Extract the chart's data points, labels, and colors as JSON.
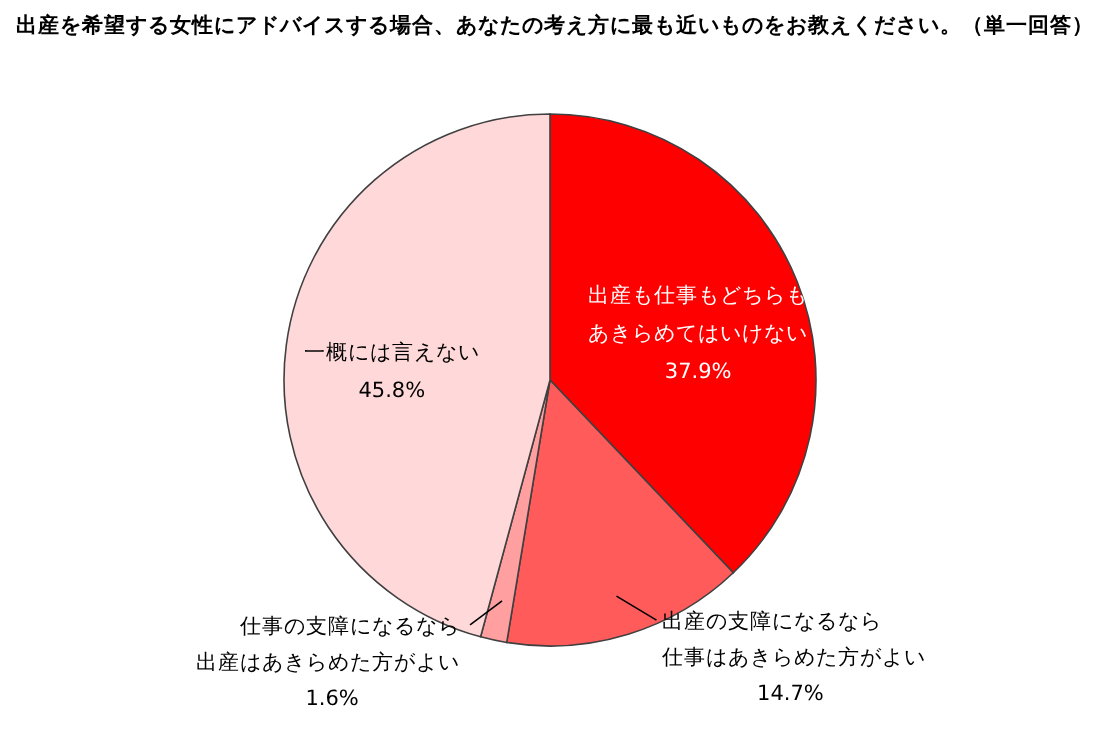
{
  "chart_data": {
    "type": "pie",
    "title": "出産を希望する女性にアドバイスする場合、あなたの考え方に最も近いものをお教えください。（単一回答）",
    "categories": [
      "出産も仕事もどちらもあきらめてはいけない",
      "出産の支障になるなら仕事はあきらめた方がよい",
      "仕事の支障になるなら出産はあきらめた方がよい",
      "一概には言えない"
    ],
    "values": [
      37.9,
      14.7,
      1.6,
      45.8
    ],
    "value_labels": [
      "37.9%",
      "14.7%",
      "1.6%",
      "45.8%"
    ],
    "colors": [
      "#ff0000",
      "#ff5b5b",
      "#ff9f9f",
      "#ffd9d9"
    ]
  }
}
